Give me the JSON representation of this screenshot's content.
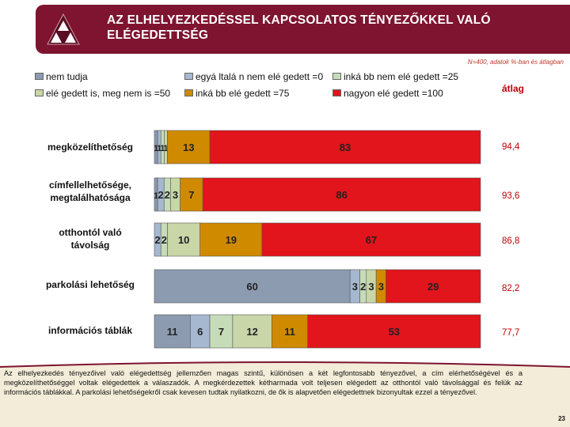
{
  "header": {
    "title_line1": "AZ ELHELYEZKEDÉSSEL KAPCSOLATOS TÉNYEZŐKKEL VALÓ",
    "title_line2": "ELÉGEDETTSÉG"
  },
  "note": "N=400, adatok %-ban és átlagban",
  "atlag_header": "átlag",
  "footer": {
    "text": "Az elhelyezkedés tényezőivel való elégedettség jellemzően magas szintű, különösen a két legfontosabb tényezővel, a cím elérhetőségével és a megközelíthetőséggel voltak elégedettek a válaszadók. A megkérdezettek kétharmada volt teljesen elégedett az otthontól való távolsággal és felük az információs táblákkal. A parkolási lehetőségekről csak kevesen tudtak nyilatkozni, de ők is alapvetően elégedettnek bizonyultak ezzel a tényezővel.",
    "page": "23"
  },
  "chart_data": {
    "type": "bar",
    "orientation": "horizontal-stacked-100",
    "legend": [
      {
        "name": "nem tudja",
        "color": "#8c9bb0"
      },
      {
        "name": "egyáltalán nem elégedett =0",
        "color": "#a6b8d0"
      },
      {
        "name": "inkább nem elégedett =25",
        "color": "#c6dcb8"
      },
      {
        "name": "elégedett is, meg nem is =50",
        "color": "#c8d6a8"
      },
      {
        "name": "inkább elégedett =75",
        "color": "#d08a00"
      },
      {
        "name": "nagyon elégedett =100",
        "color": "#e2141c"
      }
    ],
    "legend_display": [
      "nem tudja",
      "egyá ltalá n nem elé gedett =0",
      "inká bb nem elé gedett =25",
      "elé gedett is, meg nem is =50",
      "inká bb elé gedett =75",
      "nagyon elé gedett =100"
    ],
    "categories": [
      {
        "label_lines": [
          "megközelíthetőség"
        ],
        "avg": "94,4",
        "values": [
          1,
          1,
          1,
          1,
          13,
          83
        ],
        "labels": [
          "1",
          "1",
          "1",
          "1",
          "13",
          "83"
        ]
      },
      {
        "label_lines": [
          "címfellelhetősége,",
          "megtalálhatósága"
        ],
        "avg": "93,6",
        "values": [
          1,
          2,
          2,
          3,
          7,
          86
        ],
        "labels": [
          "1",
          "2",
          "2",
          "3",
          "7",
          "86"
        ]
      },
      {
        "label_lines": [
          "otthontól való",
          "távolság"
        ],
        "avg": "86,8",
        "values": [
          0,
          2,
          2,
          10,
          19,
          67
        ],
        "labels": [
          "",
          "2",
          "2",
          "10",
          "19",
          "67"
        ]
      },
      {
        "label_lines": [
          "parkolási lehetőség"
        ],
        "avg": "82,2",
        "values": [
          60,
          3,
          2,
          3,
          3,
          29
        ],
        "labels": [
          "60",
          "3",
          "2",
          "3",
          "3",
          "29"
        ]
      },
      {
        "label_lines": [
          "információs táblák"
        ],
        "avg": "77,7",
        "values": [
          11,
          6,
          7,
          12,
          11,
          53
        ],
        "labels": [
          "11",
          "6",
          "7",
          "12",
          "11",
          "53"
        ]
      }
    ],
    "xlim": [
      0,
      100
    ],
    "grid": false,
    "legend_placement": "top"
  }
}
